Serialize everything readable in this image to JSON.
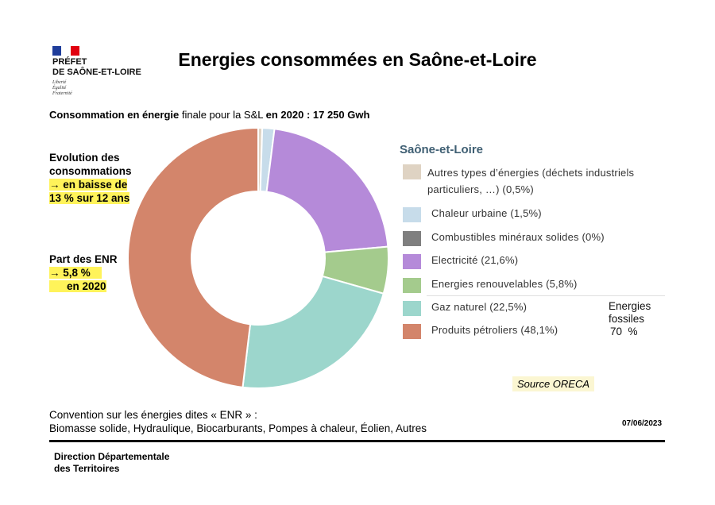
{
  "header": {
    "prefet_line1": "PRÉFET",
    "prefet_line2": "DE SAÔNE-ET-LOIRE",
    "devise": [
      "Liberté",
      "Égalité",
      "Fraternité"
    ],
    "title": "Energies consommées en Saône-et-Loire"
  },
  "subtitle": {
    "part1": "Consommation en énergie",
    "part2": " finale pour la S&L ",
    "part3": "en 2020 : 17 250 Gwh"
  },
  "side_notes": {
    "evolution_line1": "Evolution des",
    "evolution_line2": "consommations",
    "evolution_line3": "→ en baisse de",
    "evolution_line4": "13 % sur 12 ans",
    "enr_line1": "Part des ENR",
    "enr_line2": "→ 5,8 %",
    "enr_line3": "en 2020"
  },
  "chart_data": {
    "type": "pie",
    "style": "donut",
    "legend_title": "Saône-et-Loire",
    "legend_position": "right",
    "slices": [
      {
        "label_line1": "Autres types d’énergies (déchets industriels",
        "label_line2": "particuliers, …) (0,5%)",
        "value": 0.5,
        "color": "#dfd3c3"
      },
      {
        "label_line1": "Chaleur urbaine (1,5%)",
        "value": 1.5,
        "color": "#c7dcea"
      },
      {
        "label_line1": "Combustibles minéraux solides (0%)",
        "value": 0,
        "color": "#7f7f7f"
      },
      {
        "label_line1": "Electricité (21,6%)",
        "value": 21.6,
        "color": "#b58ad9"
      },
      {
        "label_line1": "Energies renouvelables (5,8%)",
        "value": 5.8,
        "color": "#a4cb8d"
      },
      {
        "label_line1": "Gaz naturel (22,5%)",
        "value": 22.5,
        "color": "#9cd6cc"
      },
      {
        "label_line1": "Produits pétroliers (48,1%)",
        "value": 48.1,
        "color": "#d3856b"
      }
    ],
    "annotation_line1": "Energies",
    "annotation_line2": "fossiles",
    "annotation_line3": "70  %"
  },
  "source": "Source ORECA",
  "footer": {
    "convention_line1": "Convention sur les énergies dites « ENR » :",
    "convention_line2": "Biomasse solide, Hydraulique, Biocarburants, Pompes à chaleur, Éolien, Autres",
    "date": "07/06/2023",
    "ddt_line1": "Direction Départementale",
    "ddt_line2": "des Territoires"
  }
}
